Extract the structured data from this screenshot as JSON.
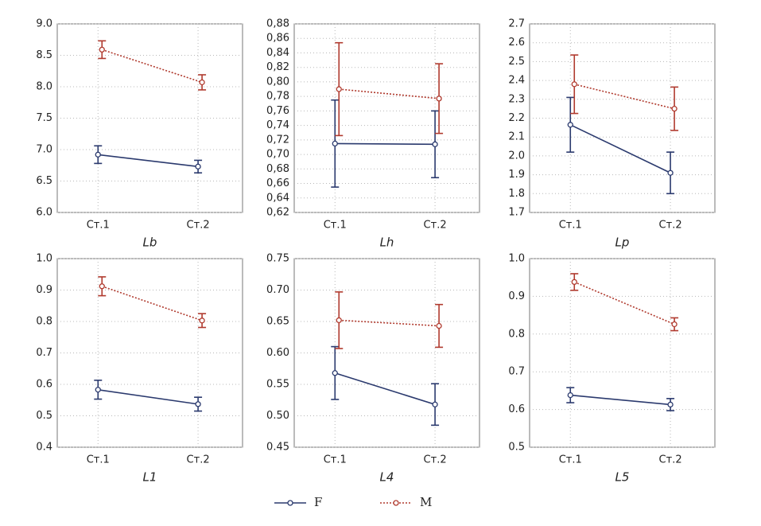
{
  "chart_data": [
    {
      "type": "line",
      "xlabel": "Lb",
      "categories": [
        "Ст.1",
        "Ст.2"
      ],
      "ylim": [
        6,
        9
      ],
      "yticks": [
        {
          "value": 6,
          "label": "6.0"
        },
        6.5,
        {
          "value": 7,
          "label": "7.0"
        },
        7.5,
        {
          "value": 8,
          "label": "8.0"
        },
        8.5,
        {
          "value": 9,
          "label": "9.0"
        }
      ],
      "grid": true,
      "series": [
        {
          "name": "F",
          "color": "#2b3a6e",
          "values": [
            6.92,
            6.73
          ],
          "errors": [
            0.14,
            0.1
          ]
        },
        {
          "name": "M",
          "color": "#b03a2e",
          "values": [
            8.59,
            8.07
          ],
          "errors": [
            0.14,
            0.12
          ]
        }
      ]
    },
    {
      "type": "line",
      "xlabel": "Lh",
      "categories": [
        "Ст.1",
        "Ст.2"
      ],
      "ylim": [
        0.62,
        0.88
      ],
      "yticks": [
        {
          "value": 0.62,
          "label": "0,62"
        },
        {
          "value": 0.64,
          "label": "0,64"
        },
        {
          "value": 0.66,
          "label": "0,66"
        },
        {
          "value": 0.68,
          "label": "0,68"
        },
        {
          "value": 0.7,
          "label": "0,70"
        },
        {
          "value": 0.72,
          "label": "0,72"
        },
        {
          "value": 0.74,
          "label": "0,74"
        },
        {
          "value": 0.76,
          "label": "0,76"
        },
        {
          "value": 0.78,
          "label": "0,78"
        },
        {
          "value": 0.8,
          "label": "0,80"
        },
        {
          "value": 0.82,
          "label": "0,82"
        },
        {
          "value": 0.84,
          "label": "0,84"
        },
        {
          "value": 0.86,
          "label": "0,86"
        },
        {
          "value": 0.88,
          "label": "0,88"
        }
      ],
      "grid": true,
      "series": [
        {
          "name": "F",
          "color": "#2b3a6e",
          "values": [
            0.715,
            0.714
          ],
          "errors": [
            0.06,
            0.046
          ]
        },
        {
          "name": "M",
          "color": "#b03a2e",
          "values": [
            0.79,
            0.777
          ],
          "errors": [
            0.064,
            0.048
          ]
        }
      ]
    },
    {
      "type": "line",
      "xlabel": "Lp",
      "categories": [
        "Ст.1",
        "Ст.2"
      ],
      "ylim": [
        1.7,
        2.7
      ],
      "yticks": [
        1.7,
        1.8,
        1.9,
        {
          "value": 2,
          "label": "2.0"
        },
        2.1,
        2.2,
        2.3,
        2.4,
        2.5,
        2.6,
        2.7
      ],
      "grid": true,
      "series": [
        {
          "name": "F",
          "color": "#2b3a6e",
          "values": [
            2.165,
            1.91
          ],
          "errors": [
            0.145,
            0.11
          ]
        },
        {
          "name": "M",
          "color": "#b03a2e",
          "values": [
            2.38,
            2.25
          ],
          "errors": [
            0.155,
            0.115
          ]
        }
      ]
    },
    {
      "type": "line",
      "xlabel": "L1",
      "categories": [
        "Ст.1",
        "Ст.2"
      ],
      "ylim": [
        0.4,
        1
      ],
      "yticks": [
        0.4,
        0.5,
        0.6,
        0.7,
        0.8,
        0.9,
        {
          "value": 1,
          "label": "1.0"
        }
      ],
      "grid": true,
      "series": [
        {
          "name": "F",
          "color": "#2b3a6e",
          "values": [
            0.583,
            0.537
          ],
          "errors": [
            0.03,
            0.022
          ]
        },
        {
          "name": "M",
          "color": "#b03a2e",
          "values": [
            0.912,
            0.803
          ],
          "errors": [
            0.03,
            0.022
          ]
        }
      ]
    },
    {
      "type": "line",
      "xlabel": "L4",
      "categories": [
        "Ст.1",
        "Ст.2"
      ],
      "ylim": [
        0.45,
        0.75
      ],
      "yticks": [
        0.45,
        {
          "value": 0.5,
          "label": "0.50"
        },
        0.55,
        {
          "value": 0.6,
          "label": "0.60"
        },
        0.65,
        {
          "value": 0.7,
          "label": "0.70"
        },
        0.75
      ],
      "grid": true,
      "series": [
        {
          "name": "F",
          "color": "#2b3a6e",
          "values": [
            0.568,
            0.518
          ],
          "errors": [
            0.042,
            0.033
          ]
        },
        {
          "name": "M",
          "color": "#b03a2e",
          "values": [
            0.652,
            0.643
          ],
          "errors": [
            0.045,
            0.034
          ]
        }
      ]
    },
    {
      "type": "line",
      "xlabel": "L5",
      "categories": [
        "Ст.1",
        "Ст.2"
      ],
      "ylim": [
        0.5,
        1
      ],
      "yticks": [
        0.5,
        0.6,
        0.7,
        0.8,
        0.9,
        {
          "value": 1,
          "label": "1.0"
        }
      ],
      "grid": true,
      "series": [
        {
          "name": "F",
          "color": "#2b3a6e",
          "values": [
            0.638,
            0.613
          ],
          "errors": [
            0.02,
            0.016
          ]
        },
        {
          "name": "M",
          "color": "#b03a2e",
          "values": [
            0.938,
            0.826
          ],
          "errors": [
            0.022,
            0.017
          ]
        }
      ]
    }
  ]
}
